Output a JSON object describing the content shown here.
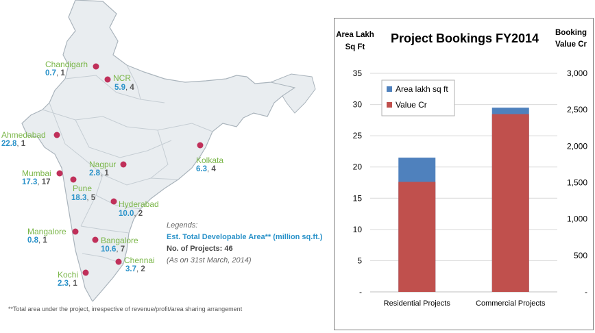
{
  "map": {
    "cities": [
      {
        "name": "Chandigarh",
        "area": "0.7",
        "projects": "1"
      },
      {
        "name": "NCR",
        "area": "5.9",
        "projects": "4"
      },
      {
        "name": "Ahmedabad",
        "area": "22.8",
        "projects": "1"
      },
      {
        "name": "Kolkata",
        "area": "6.3",
        "projects": "4"
      },
      {
        "name": "Nagpur",
        "area": "2.8",
        "projects": "1"
      },
      {
        "name": "Mumbai",
        "area": "17.3",
        "projects": "17"
      },
      {
        "name": "Pune",
        "area": "18.3",
        "projects": "5"
      },
      {
        "name": "Hyderabad",
        "area": "10.0",
        "projects": "2"
      },
      {
        "name": "Mangalore",
        "area": "0.8",
        "projects": "1"
      },
      {
        "name": "Bangalore",
        "area": "10.6",
        "projects": "7"
      },
      {
        "name": "Chennai",
        "area": "3.7",
        "projects": "2"
      },
      {
        "name": "Kochi",
        "area": "2.3",
        "projects": "1"
      }
    ],
    "legend": {
      "title": "Legends:",
      "area_label": "Est. Total Developable Area** (million sq.ft.)",
      "projects_label": "No. of Projects: 46",
      "date_note": "(As on 31st March, 2014)"
    },
    "footnote": "**Total area under the project, irrespective of revenue/profit/area sharing arrangement",
    "colors": {
      "city_name": "#7ab648",
      "area_value": "#2a92c9",
      "marker": "#c0305a",
      "land": "#e9edf0",
      "border": "#aab4bc"
    }
  },
  "chart_data": {
    "type": "bar",
    "stacked": true,
    "title": "Project Bookings  FY2014",
    "left_axis_label": [
      "Area Lakh",
      "Sq Ft"
    ],
    "right_axis_label": [
      "Booking",
      "Value Cr"
    ],
    "categories": [
      "Residential Projects",
      "Commercial Projects"
    ],
    "series": [
      {
        "name": "Area lakh sq ft",
        "axis": "left",
        "values": [
          21.5,
          29.5
        ],
        "color": "#4f81bd"
      },
      {
        "name": "Value Cr",
        "axis": "right",
        "values": [
          1510,
          2440
        ],
        "color": "#c0504d"
      }
    ],
    "left_ylim": [
      0,
      35
    ],
    "left_ticks": [
      "-",
      "5",
      "10",
      "15",
      "20",
      "25",
      "30",
      "35"
    ],
    "right_ylim": [
      0,
      3000
    ],
    "right_ticks": [
      "-",
      "500",
      "1,000",
      "1,500",
      "2,000",
      "2,500",
      "3,000"
    ],
    "grid": true,
    "legend_position": "top-left"
  }
}
